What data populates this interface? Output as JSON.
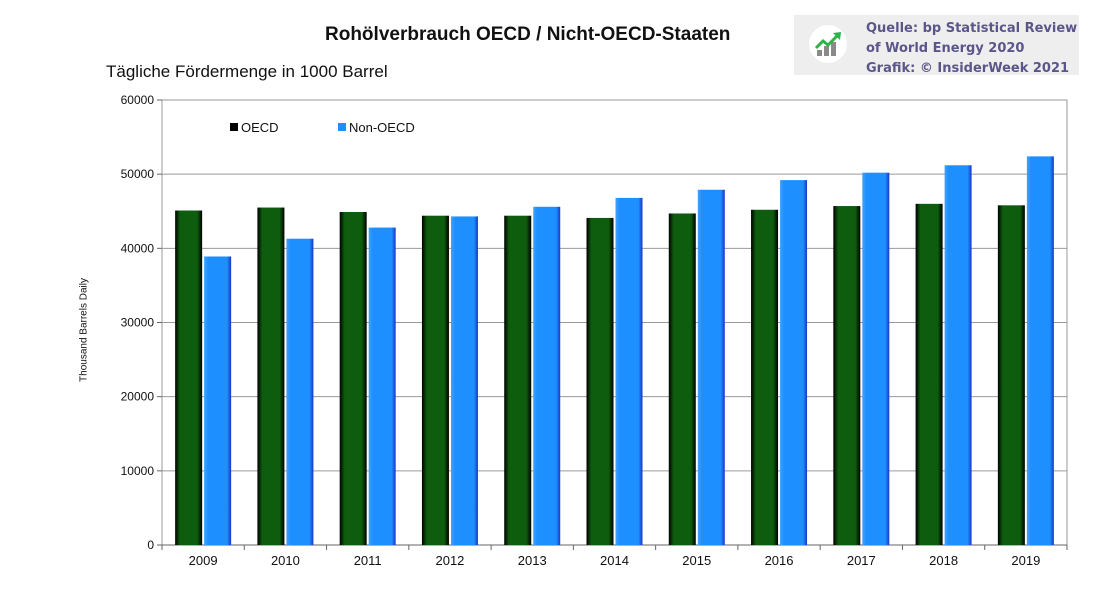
{
  "header": {
    "title": "Rohölverbrauch OECD / Nicht-OECD-Staaten",
    "subtitle": "Tägliche Fördermenge in 1000 Barrel"
  },
  "source": {
    "logo_icon": "trend-up-chart-icon",
    "lines": [
      "Quelle: bp Statistical Review",
      "of World Energy 2020",
      "Grafik: © InsiderWeek 2021"
    ]
  },
  "colors": {
    "oecd": "#0e5c0e",
    "non_oecd": "#1e8fff",
    "source_text": "#5b5689",
    "logo_green": "#2cb34a"
  },
  "chart_data": {
    "type": "bar",
    "title": "Rohölverbrauch OECD / Nicht-OECD-Staaten",
    "subtitle": "Tägliche Fördermenge in 1000 Barrel",
    "xlabel": "",
    "ylabel": "Thousand Barrels Daily",
    "ylim": [
      0,
      60000
    ],
    "yticks": [
      0,
      10000,
      20000,
      30000,
      40000,
      50000,
      60000
    ],
    "grid": true,
    "legend": "top-left",
    "categories": [
      "2009",
      "2010",
      "2011",
      "2012",
      "2013",
      "2014",
      "2015",
      "2016",
      "2017",
      "2018",
      "2019"
    ],
    "series": [
      {
        "name": "OECD",
        "values": [
          45100,
          45500,
          44900,
          44400,
          44400,
          44100,
          44700,
          45200,
          45700,
          46000,
          45800
        ]
      },
      {
        "name": "Non-OECD",
        "values": [
          38900,
          41300,
          42800,
          44300,
          45600,
          46800,
          47900,
          49200,
          50200,
          51200,
          52400
        ]
      }
    ]
  }
}
